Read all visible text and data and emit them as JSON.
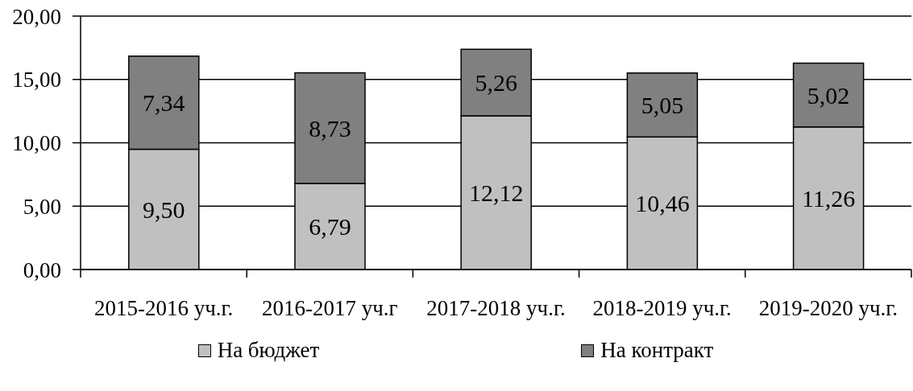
{
  "chart_data": {
    "type": "bar",
    "categories": [
      "2015-2016 уч.г.",
      "2016-2017 уч.г",
      "2017-2018 уч.г.",
      "2018-2019 уч.г.",
      "2019-2020 уч.г."
    ],
    "stacked": true,
    "series": [
      {
        "name": "На бюджет",
        "color": "#c0c0c0",
        "values": [
          9.5,
          6.79,
          12.12,
          10.46,
          11.26
        ],
        "value_labels": [
          "9,50",
          "6,79",
          "12,12",
          "10,46",
          "11,26"
        ]
      },
      {
        "name": "На контракт",
        "color": "#808080",
        "values": [
          7.34,
          8.73,
          5.26,
          5.05,
          5.02
        ],
        "value_labels": [
          "7,34",
          "8,73",
          "5,26",
          "5,05",
          "5,02"
        ]
      }
    ],
    "ylim": [
      0,
      20
    ],
    "yticks": [
      {
        "value": 0,
        "label": "0,00"
      },
      {
        "value": 5,
        "label": "5,00"
      },
      {
        "value": 10,
        "label": "10,00"
      },
      {
        "value": 15,
        "label": "15,00"
      },
      {
        "value": 20,
        "label": "20,00"
      }
    ],
    "grid": "y",
    "legend": "bottom"
  }
}
